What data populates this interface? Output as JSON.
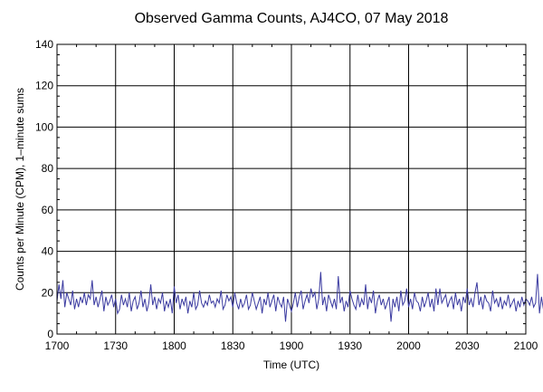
{
  "chart_data": {
    "type": "line",
    "title": "Observed Gamma Counts, AJ4CO, 07 May 2018",
    "xlabel": "Time (UTC)",
    "ylabel": "Counts per Minute (CPM), 1–minute sums",
    "xlim": [
      0,
      240
    ],
    "ylim": [
      0,
      140
    ],
    "x_tick_labels": [
      "1700",
      "1730",
      "1800",
      "1830",
      "1900",
      "1930",
      "2000",
      "2030",
      "2100"
    ],
    "y_tick_labels": [
      "0",
      "20",
      "40",
      "60",
      "80",
      "100",
      "120",
      "140"
    ],
    "y_ticks": [
      0,
      20,
      40,
      60,
      80,
      100,
      120,
      140
    ],
    "grid": true,
    "legend": "none",
    "series": [
      {
        "color": "#3a3aa0",
        "x_start": "1700",
        "x_step_minutes": 1,
        "values": [
          16,
          24,
          17,
          26,
          13,
          20,
          17,
          14,
          21,
          12,
          17,
          13,
          18,
          15,
          20,
          14,
          19,
          17,
          26,
          14,
          18,
          13,
          17,
          21,
          11,
          18,
          14,
          16,
          19,
          13,
          17,
          10,
          12,
          19,
          14,
          17,
          13,
          20,
          11,
          16,
          18,
          12,
          15,
          21,
          13,
          17,
          11,
          15,
          24,
          14,
          18,
          12,
          17,
          15,
          20,
          11,
          16,
          13,
          17,
          10,
          23,
          15,
          19,
          12,
          17,
          14,
          18,
          10,
          16,
          13,
          20,
          12,
          14,
          21,
          15,
          13,
          16,
          14,
          19,
          15,
          16,
          13,
          17,
          15,
          21,
          12,
          14,
          19,
          16,
          18,
          13,
          20,
          15,
          12,
          17,
          13,
          15,
          19,
          12,
          14,
          20,
          16,
          12,
          15,
          18,
          10,
          17,
          14,
          20,
          13,
          16,
          19,
          11,
          18,
          15,
          13,
          18,
          6,
          17,
          14,
          11,
          15,
          20,
          13,
          18,
          21,
          12,
          16,
          19,
          15,
          22,
          18,
          20,
          12,
          17,
          30,
          14,
          18,
          11,
          19,
          16,
          13,
          17,
          12,
          28,
          15,
          18,
          11,
          16,
          13,
          21,
          17,
          14,
          12,
          19,
          13,
          17,
          14,
          24,
          12,
          18,
          15,
          21,
          10,
          16,
          19,
          14,
          17,
          12,
          15,
          18,
          6,
          17,
          13,
          18,
          11,
          21,
          14,
          16,
          22,
          13,
          17,
          12,
          20,
          16,
          15,
          11,
          18,
          13,
          16,
          20,
          13,
          17,
          11,
          22,
          14,
          22,
          15,
          17,
          19,
          13,
          16,
          18,
          12,
          20,
          14,
          17,
          11,
          18,
          15,
          22,
          14,
          17,
          13,
          20,
          25,
          14,
          18,
          12,
          19,
          16,
          15,
          11,
          21,
          15,
          17,
          13,
          18,
          12,
          16,
          14,
          19,
          13,
          15,
          17,
          11,
          16,
          13,
          18,
          14,
          17,
          16,
          14,
          18,
          13,
          15,
          29,
          10,
          18,
          12,
          16,
          14,
          13,
          17
        ]
      }
    ]
  }
}
